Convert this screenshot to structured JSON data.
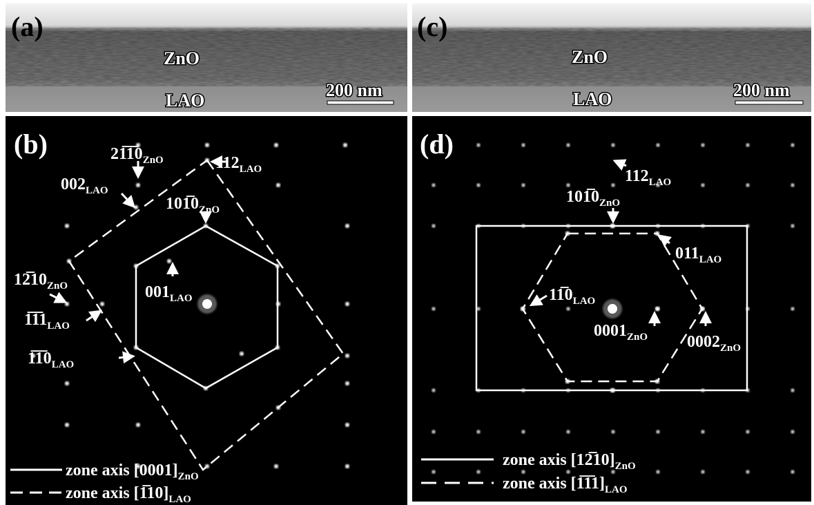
{
  "panels": [
    {
      "label": "(a)",
      "layers": [
        "ZnO",
        "LAO"
      ],
      "scale_bar": "200 nm"
    },
    {
      "label": "(b)",
      "spots": [
        {
          "main": "21̅1̅0",
          "sub": "ZnO"
        },
        {
          "main": "112",
          "sub": "LAO"
        },
        {
          "main": "002",
          "sub": "LAO"
        },
        {
          "main": "101̅0",
          "sub": "ZnO"
        },
        {
          "main": "001",
          "sub": "LAO"
        },
        {
          "main": "12̅10",
          "sub": "ZnO"
        },
        {
          "main": "1̅1̅1",
          "sub": "LAO"
        },
        {
          "main": "1̅1̅0",
          "sub": "LAO"
        }
      ],
      "legend": [
        {
          "main": "zone axis [0001]",
          "sub": "ZnO"
        },
        {
          "main": "zone axis [1̅10]",
          "sub": "LAO"
        }
      ]
    },
    {
      "label": "(c)",
      "layers": [
        "ZnO",
        "LAO"
      ],
      "scale_bar": "200 nm"
    },
    {
      "label": "(d)",
      "spots": [
        {
          "main": "112",
          "sub": "LAO"
        },
        {
          "main": "101̅0",
          "sub": "ZnO"
        },
        {
          "main": "011",
          "sub": "LAO"
        },
        {
          "main": "11̅0",
          "sub": "LAO"
        },
        {
          "main": "0001",
          "sub": "ZnO"
        },
        {
          "main": "0002",
          "sub": "ZnO"
        }
      ],
      "legend": [
        {
          "main": "zone axis [12̅10]",
          "sub": "ZnO"
        },
        {
          "main": "zone axis [1̅1̅1]",
          "sub": "LAO"
        }
      ]
    }
  ]
}
